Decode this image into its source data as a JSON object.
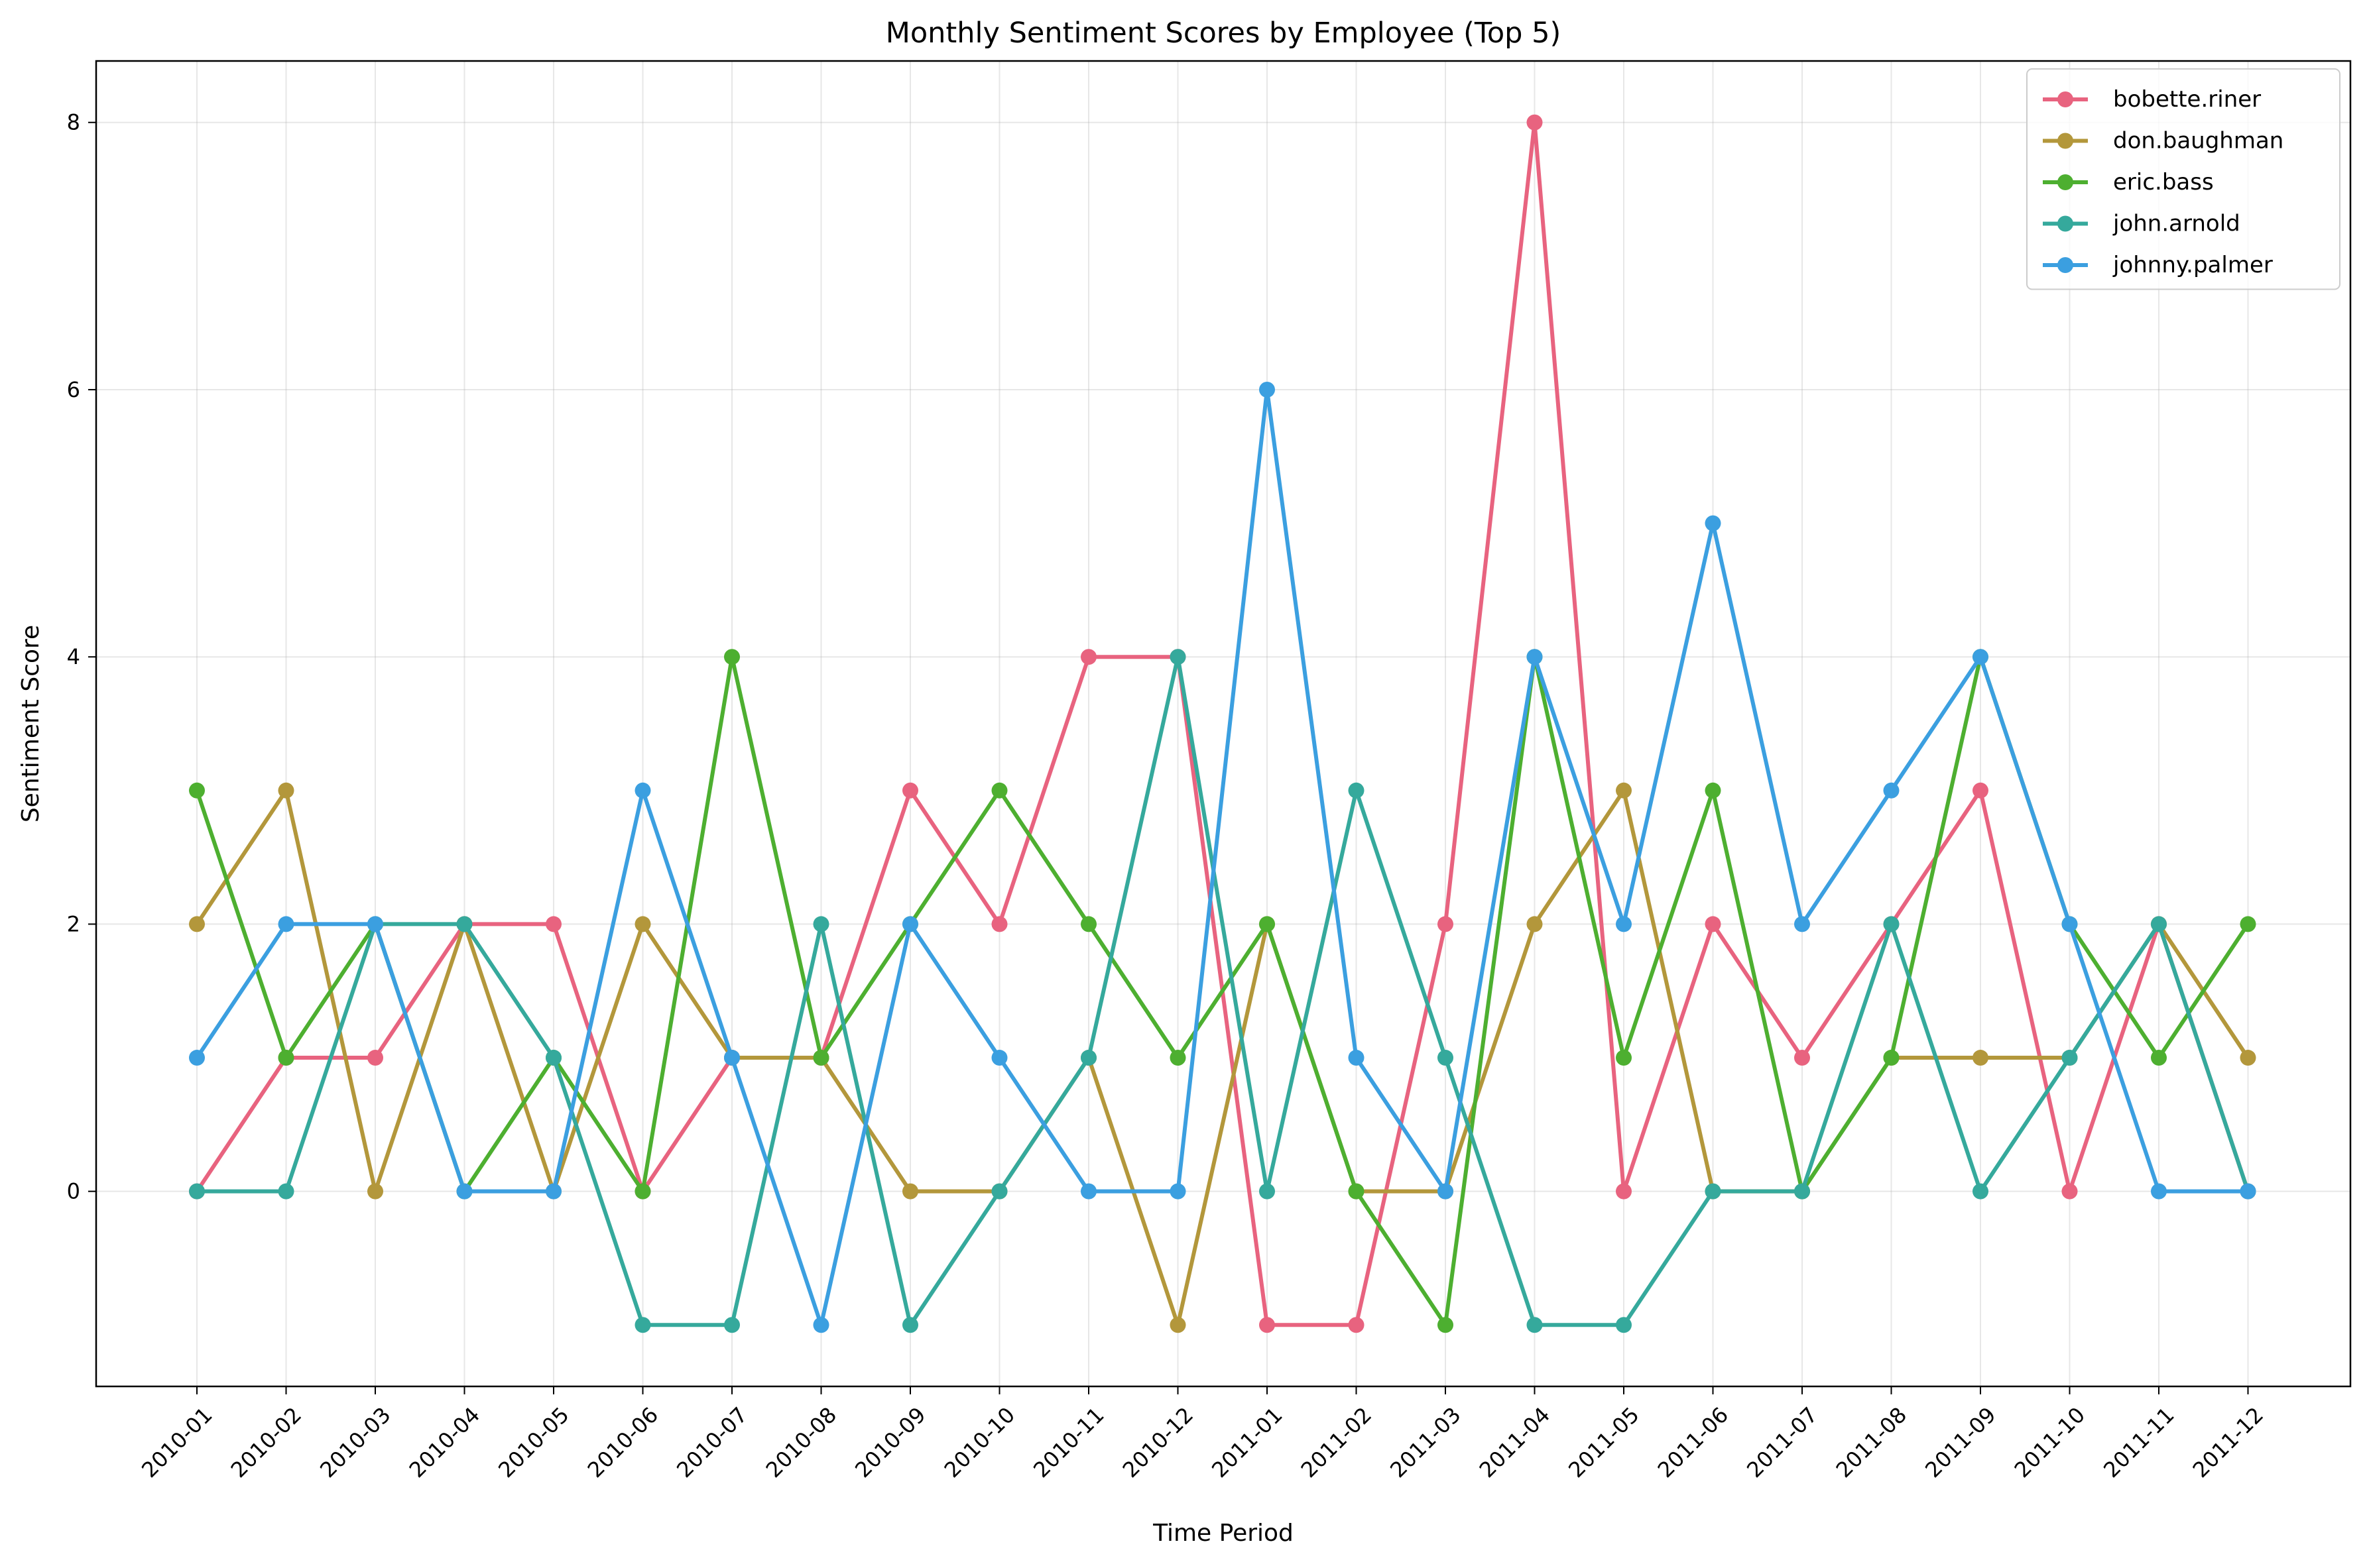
{
  "chart_data": {
    "type": "line",
    "title": "Monthly Sentiment Scores by Employee (Top 5)",
    "xlabel": "Time Period",
    "ylabel": "Sentiment Score",
    "categories": [
      "2010-01",
      "2010-02",
      "2010-03",
      "2010-04",
      "2010-05",
      "2010-06",
      "2010-07",
      "2010-08",
      "2010-09",
      "2010-10",
      "2010-11",
      "2010-12",
      "2011-01",
      "2011-02",
      "2011-03",
      "2011-04",
      "2011-05",
      "2011-06",
      "2011-07",
      "2011-08",
      "2011-09",
      "2011-10",
      "2011-11",
      "2011-12"
    ],
    "ylim": [
      -1.46,
      8.46
    ],
    "yticks": [
      0,
      2,
      4,
      6,
      8
    ],
    "grid": true,
    "legend_position": "top-right",
    "series": [
      {
        "name": "bobette.riner",
        "color": "#e8637f",
        "values": [
          0,
          1,
          1,
          2,
          2,
          0,
          1,
          1,
          3,
          2,
          4,
          4,
          -1,
          -1,
          2,
          8,
          0,
          2,
          1,
          2,
          3,
          0,
          2,
          0
        ]
      },
      {
        "name": "don.baughman",
        "color": "#b3973b",
        "values": [
          2,
          3,
          0,
          2,
          0,
          2,
          1,
          1,
          0,
          0,
          1,
          -1,
          2,
          0,
          0,
          2,
          3,
          0,
          0,
          1,
          1,
          1,
          2,
          1
        ]
      },
      {
        "name": "eric.bass",
        "color": "#4daf30",
        "values": [
          3,
          1,
          2,
          0,
          1,
          0,
          4,
          1,
          2,
          3,
          2,
          1,
          2,
          0,
          -1,
          4,
          1,
          3,
          0,
          1,
          4,
          2,
          1,
          2
        ]
      },
      {
        "name": "john.arnold",
        "color": "#35a99c",
        "values": [
          0,
          0,
          2,
          2,
          1,
          -1,
          -1,
          2,
          -1,
          0,
          1,
          4,
          0,
          3,
          1,
          -1,
          -1,
          0,
          0,
          2,
          0,
          1,
          2,
          0
        ]
      },
      {
        "name": "johnny.palmer",
        "color": "#3b9fe0",
        "values": [
          1,
          2,
          2,
          0,
          0,
          3,
          1,
          -1,
          2,
          1,
          0,
          0,
          6,
          1,
          0,
          4,
          2,
          5,
          2,
          3,
          4,
          2,
          0,
          0
        ]
      }
    ]
  }
}
